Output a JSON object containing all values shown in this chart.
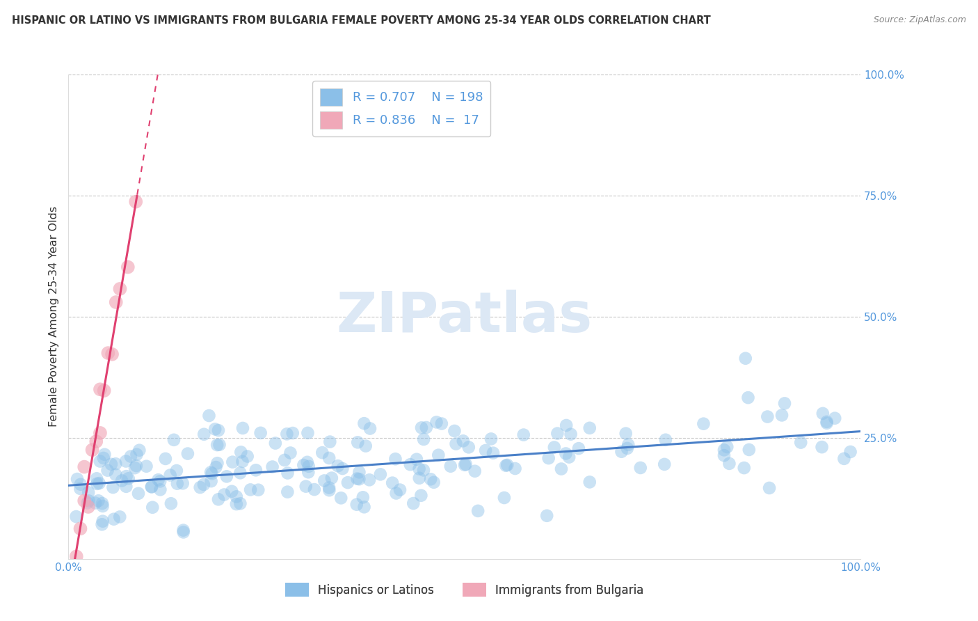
{
  "title": "HISPANIC OR LATINO VS IMMIGRANTS FROM BULGARIA FEMALE POVERTY AMONG 25-34 YEAR OLDS CORRELATION CHART",
  "source": "Source: ZipAtlas.com",
  "ylabel": "Female Poverty Among 25-34 Year Olds",
  "xlim": [
    0,
    1
  ],
  "ylim": [
    0,
    1
  ],
  "grid_color": "#c8c8c8",
  "blue_dot_color": "#8bbfe8",
  "pink_dot_color": "#f0a8b8",
  "blue_line_color": "#4a80c8",
  "pink_line_color": "#e04070",
  "watermark_color": "#dce8f5",
  "tick_label_color": "#5599dd",
  "legend_R_blue": "0.707",
  "legend_N_blue": "198",
  "legend_R_pink": "0.836",
  "legend_N_pink": "17",
  "legend_text_color": "#5599dd",
  "title_color": "#333333",
  "source_color": "#888888",
  "ylabel_color": "#333333"
}
